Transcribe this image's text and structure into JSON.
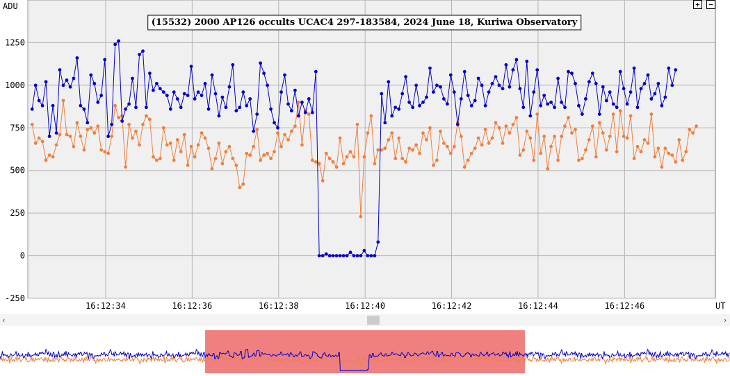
{
  "chart_data": {
    "type": "line",
    "title": "(15532) 2000 AP126 occults UCAC4 297-183584, 2024 June 18, Kuriwa Observatory",
    "ylabel": "ADU",
    "xlabel": "UT",
    "ylim": [
      -250,
      1500
    ],
    "yticks": [
      -250,
      0,
      250,
      500,
      750,
      1000,
      1250
    ],
    "xticks": [
      "16:12:34",
      "16:12:36",
      "16:12:38",
      "16:12:40",
      "16:12:42",
      "16:12:44",
      "16:12:46"
    ],
    "xtick_seconds": [
      34,
      36,
      38,
      40,
      42,
      44,
      46
    ],
    "xlim_seconds": [
      32.2,
      48.1
    ],
    "grid": true,
    "series": [
      {
        "color": "#0000cc",
        "t0": 32.3,
        "dt": 0.08,
        "values": [
          860,
          1000,
          910,
          880,
          1020,
          700,
          880,
          720,
          1090,
          1000,
          1030,
          990,
          1040,
          1160,
          880,
          860,
          780,
          1060,
          1010,
          900,
          940,
          1150,
          700,
          770,
          1240,
          1260,
          790,
          860,
          890,
          1040,
          870,
          1180,
          1200,
          870,
          1070,
          970,
          1010,
          980,
          960,
          940,
          860,
          960,
          920,
          870,
          950,
          940,
          1110,
          920,
          960,
          940,
          1010,
          860,
          1060,
          950,
          820,
          930,
          870,
          990,
          1120,
          850,
          870,
          960,
          880,
          920,
          730,
          830,
          1130,
          1070,
          1000,
          860,
          780,
          750,
          960,
          1060,
          890,
          850,
          970,
          820,
          900,
          840,
          920,
          840,
          1080,
          0,
          0,
          10,
          0,
          0,
          0,
          0,
          0,
          0,
          20,
          0,
          0,
          0,
          30,
          0,
          0,
          0,
          80,
          950,
          780,
          1020,
          820,
          870,
          860,
          950,
          1050,
          900,
          870,
          1000,
          880,
          900,
          930,
          1100,
          960,
          1000,
          990,
          920,
          890,
          1060,
          960,
          770,
          920,
          1080,
          940,
          880,
          910,
          1040,
          1000,
          880,
          960,
          1010,
          1050,
          1000,
          980,
          1120,
          990,
          1090,
          1150,
          980,
          870,
          1140,
          820,
          960,
          1090,
          880,
          940,
          890,
          900,
          870,
          1040,
          900,
          870,
          1080,
          1070,
          1010,
          880,
          830,
          920,
          1020,
          1070,
          1010,
          830,
          990,
          910,
          960,
          890,
          870,
          1080,
          980,
          890,
          960,
          1100,
          870,
          980,
          1010,
          1060,
          920,
          950,
          1010,
          880,
          930,
          1100,
          1000,
          1090
        ]
      },
      {
        "color": "#f07f3c",
        "t0": 32.3,
        "dt": 0.08,
        "values": [
          770,
          660,
          690,
          670,
          560,
          590,
          580,
          650,
          710,
          910,
          710,
          700,
          640,
          780,
          700,
          620,
          740,
          750,
          720,
          760,
          620,
          610,
          600,
          700,
          880,
          810,
          820,
          520,
          770,
          690,
          730,
          650,
          770,
          820,
          800,
          580,
          560,
          570,
          750,
          650,
          660,
          560,
          680,
          610,
          710,
          530,
          640,
          580,
          650,
          720,
          690,
          630,
          510,
          570,
          660,
          540,
          610,
          640,
          570,
          530,
          400,
          420,
          600,
          590,
          640,
          740,
          560,
          590,
          600,
          570,
          610,
          720,
          640,
          710,
          680,
          730,
          760,
          900,
          650,
          850,
          830,
          560,
          550,
          540,
          440,
          600,
          570,
          550,
          520,
          690,
          540,
          580,
          610,
          580,
          770,
          230,
          580,
          720,
          820,
          540,
          620,
          620,
          630,
          680,
          720,
          570,
          690,
          570,
          550,
          630,
          620,
          650,
          600,
          720,
          680,
          750,
          530,
          560,
          730,
          660,
          640,
          600,
          640,
          780,
          700,
          520,
          560,
          600,
          630,
          690,
          650,
          740,
          660,
          690,
          780,
          750,
          660,
          760,
          720,
          770,
          810,
          590,
          620,
          730,
          690,
          560,
          830,
          600,
          700,
          510,
          640,
          700,
          560,
          700,
          760,
          810,
          720,
          740,
          560,
          570,
          620,
          680,
          760,
          580,
          780,
          720,
          620,
          700,
          830,
          610,
          850,
          700,
          690,
          820,
          570,
          640,
          610,
          680,
          660,
          830,
          580,
          630,
          520,
          630,
          600,
          590,
          550,
          680,
          560,
          610,
          740,
          720,
          760
        ]
      }
    ]
  },
  "ui": {
    "zoom_in_label": "+",
    "zoom_out_label": "−",
    "scroll_left_label": "‹",
    "scroll_right_label": "›"
  }
}
